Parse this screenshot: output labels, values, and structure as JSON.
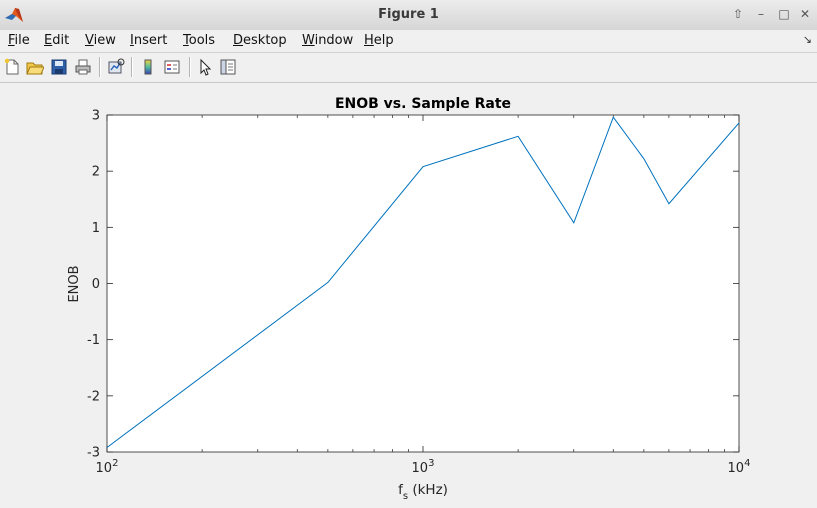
{
  "window": {
    "title": "Figure 1"
  },
  "menu": [
    {
      "label": "File",
      "mnemonic": "F",
      "rest": "ile"
    },
    {
      "label": "Edit",
      "mnemonic": "E",
      "rest": "dit"
    },
    {
      "label": "View",
      "mnemonic": "V",
      "rest": "iew"
    },
    {
      "label": "Insert",
      "mnemonic": "I",
      "rest": "nsert"
    },
    {
      "label": "Tools",
      "mnemonic": "T",
      "rest": "ools"
    },
    {
      "label": "Desktop",
      "mnemonic": "D",
      "rest": "esktop"
    },
    {
      "label": "Window",
      "mnemonic": "W",
      "rest": "indow"
    },
    {
      "label": "Help",
      "mnemonic": "H",
      "rest": "elp"
    }
  ],
  "toolbar": [
    "new-figure-icon",
    "open-file-icon",
    "save-icon",
    "print-icon",
    "link-plot-icon",
    "colorbar-icon",
    "legend-icon",
    "pointer-icon",
    "property-editor-icon"
  ],
  "chart_data": {
    "type": "line",
    "title": "ENOB vs.  Sample Rate",
    "xlabel": "f",
    "xlabel_sub": "s",
    "xlabel_unit": " (kHz)",
    "ylabel": "ENOB",
    "xscale": "log",
    "xlim": [
      100,
      10000
    ],
    "ylim": [
      -3,
      3
    ],
    "yticks": [
      -3,
      -2,
      -1,
      0,
      1,
      2,
      3
    ],
    "yticklabels": [
      "-3",
      "-2",
      "-1",
      "0",
      "1",
      "2",
      "3"
    ],
    "xticks": [
      100,
      1000,
      10000
    ],
    "xticklabel_base": "10",
    "xticklabel_exps": [
      "2",
      "3",
      "4"
    ],
    "grid": false,
    "line_color": "#0072bd",
    "x": [
      100,
      500,
      1000,
      2000,
      3000,
      4000,
      5000,
      6000,
      10000
    ],
    "y": [
      -2.92,
      0.02,
      2.08,
      2.62,
      1.08,
      2.96,
      2.22,
      1.42,
      2.86
    ]
  }
}
